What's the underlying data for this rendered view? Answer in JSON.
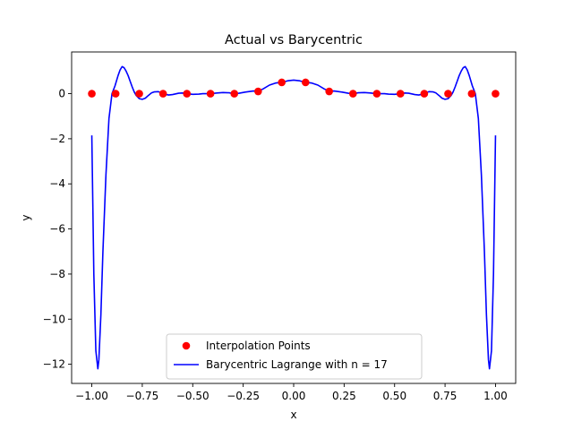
{
  "chart_data": {
    "type": "line",
    "title": "Actual vs Barycentric",
    "xlabel": "x",
    "ylabel": "y",
    "xlim": [
      -1.1,
      1.1
    ],
    "ylim": [
      -12.85,
      1.85
    ],
    "x_ticks": [
      -1.0,
      -0.75,
      -0.5,
      -0.25,
      0.0,
      0.25,
      0.5,
      0.75,
      1.0
    ],
    "x_tick_labels": [
      "−1.00",
      "−0.75",
      "−0.50",
      "−0.25",
      "0.00",
      "0.25",
      "0.50",
      "0.75",
      "1.00"
    ],
    "y_ticks": [
      0,
      -2,
      -4,
      -6,
      -8,
      -10,
      -12
    ],
    "y_tick_labels": [
      "0",
      "−2",
      "−4",
      "−6",
      "−8",
      "−10",
      "−12"
    ],
    "grid": false,
    "legend_position": "lower center",
    "series": [
      {
        "name": "Interpolation Points",
        "kind": "scatter",
        "color": "#ff0000",
        "x": [
          -1.0,
          -0.882,
          -0.765,
          -0.647,
          -0.529,
          -0.412,
          -0.294,
          -0.176,
          -0.059,
          0.059,
          0.176,
          0.294,
          0.412,
          0.529,
          0.647,
          0.765,
          0.882,
          1.0
        ],
        "y": [
          0.0,
          0.0,
          0.0,
          0.0,
          0.0,
          0.0,
          0.0,
          0.1,
          0.5,
          0.5,
          0.1,
          0.0,
          0.0,
          0.0,
          0.0,
          0.0,
          0.0,
          0.0
        ]
      },
      {
        "name": "Barycentric Lagrange with n = 17",
        "kind": "line",
        "color": "#0000ff",
        "x": [
          -1.0,
          -0.99,
          -0.98,
          -0.97,
          -0.965,
          -0.955,
          -0.945,
          -0.93,
          -0.915,
          -0.9,
          -0.885,
          -0.87,
          -0.86,
          -0.85,
          -0.84,
          -0.83,
          -0.82,
          -0.81,
          -0.8,
          -0.79,
          -0.78,
          -0.765,
          -0.75,
          -0.735,
          -0.72,
          -0.705,
          -0.69,
          -0.67,
          -0.647,
          -0.62,
          -0.6,
          -0.57,
          -0.55,
          -0.529,
          -0.5,
          -0.47,
          -0.45,
          -0.412,
          -0.38,
          -0.35,
          -0.32,
          -0.294,
          -0.27,
          -0.24,
          -0.2,
          -0.176,
          -0.15,
          -0.12,
          -0.09,
          -0.059,
          -0.03,
          0.0,
          0.03,
          0.059,
          0.09,
          0.12,
          0.15,
          0.176,
          0.2,
          0.24,
          0.27,
          0.294,
          0.32,
          0.35,
          0.38,
          0.412,
          0.45,
          0.47,
          0.5,
          0.529,
          0.55,
          0.57,
          0.6,
          0.62,
          0.647,
          0.67,
          0.69,
          0.705,
          0.72,
          0.735,
          0.75,
          0.765,
          0.78,
          0.79,
          0.8,
          0.81,
          0.82,
          0.83,
          0.84,
          0.85,
          0.86,
          0.87,
          0.885,
          0.9,
          0.915,
          0.93,
          0.945,
          0.955,
          0.965,
          0.97,
          0.98,
          0.99,
          1.0
        ],
        "y": [
          -1.85,
          -8.0,
          -11.4,
          -12.2,
          -11.8,
          -9.8,
          -7.0,
          -3.6,
          -1.1,
          0.0,
          0.35,
          0.8,
          1.05,
          1.2,
          1.15,
          1.0,
          0.8,
          0.55,
          0.3,
          0.08,
          -0.08,
          -0.22,
          -0.25,
          -0.2,
          -0.08,
          0.03,
          0.08,
          0.09,
          0.0,
          -0.06,
          -0.04,
          0.02,
          0.03,
          0.0,
          -0.03,
          -0.02,
          0.0,
          0.0,
          0.03,
          0.05,
          0.04,
          0.0,
          0.02,
          0.07,
          0.12,
          0.1,
          0.22,
          0.38,
          0.47,
          0.5,
          0.57,
          0.6,
          0.57,
          0.5,
          0.47,
          0.38,
          0.22,
          0.1,
          0.12,
          0.07,
          0.02,
          0.0,
          0.04,
          0.05,
          0.03,
          0.0,
          0.0,
          -0.02,
          -0.03,
          0.0,
          0.03,
          0.02,
          -0.04,
          -0.06,
          0.0,
          0.09,
          0.08,
          0.03,
          -0.08,
          -0.2,
          -0.25,
          -0.22,
          -0.08,
          0.08,
          0.3,
          0.55,
          0.8,
          1.0,
          1.15,
          1.2,
          1.05,
          0.8,
          0.35,
          0.0,
          -1.1,
          -3.6,
          -7.0,
          -9.8,
          -11.8,
          -12.2,
          -11.4,
          -8.0,
          -1.85
        ]
      }
    ]
  }
}
